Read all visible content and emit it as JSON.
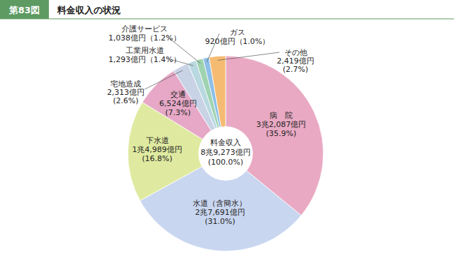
{
  "chart_data": {
    "type": "pie",
    "figure_number": "第83図",
    "title": "料金収入の状況",
    "categories": [
      "病　院",
      "水道（含簡水）",
      "下水道",
      "交通",
      "宅地造成",
      "工業用水道",
      "介護サービス",
      "ガス",
      "その他"
    ],
    "values": [
      35.9,
      31.0,
      16.8,
      7.3,
      2.6,
      1.4,
      1.2,
      1.0,
      2.7
    ],
    "value_labels": [
      "(35.9%)",
      "(31.0%)",
      "(16.8%)",
      "(7.3%)",
      "(2.6%)",
      "（1.4%）",
      "（1.2%）",
      "（1.0%）",
      "(2.7%)"
    ],
    "amounts": [
      32087,
      27691,
      14989,
      6524,
      2313,
      1293,
      1038,
      920,
      2419
    ],
    "amount_labels": [
      "3兆2,087億円",
      "2兆7,691億円",
      "1兆4,989億円",
      "6,524億円",
      "2,313億円",
      "1,293億円",
      "1,038億円",
      "920億円",
      "2,419億円"
    ],
    "colors": [
      "#e9a9c3",
      "#c9d6f0",
      "#dfeaa0",
      "#e6a8c6",
      "#c9d3e6",
      "#b9d8e0",
      "#9fd3b1",
      "#8dbfe8",
      "#f5bb73"
    ],
    "data_labels": true,
    "total": {
      "label": "料金収入",
      "amount": 89273,
      "amount_label": "8兆9,273億円",
      "value": 100.0,
      "value_label": "(100.0%)"
    }
  }
}
